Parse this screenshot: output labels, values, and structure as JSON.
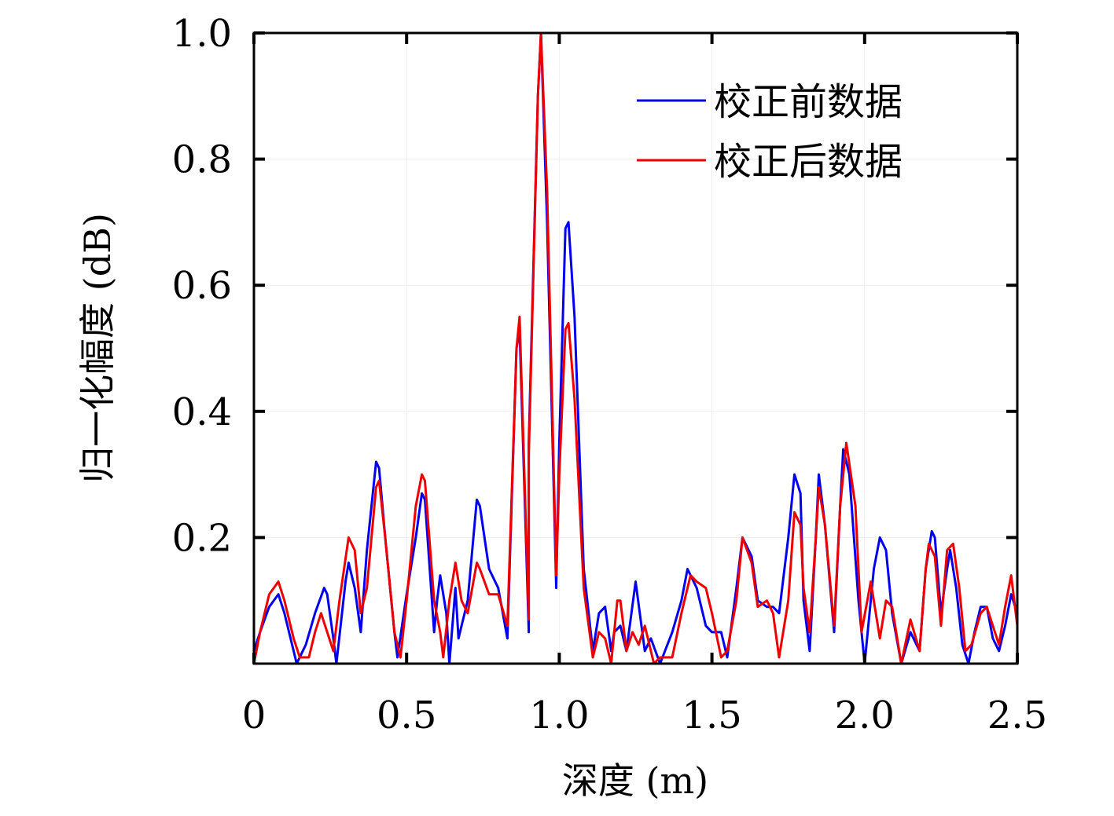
{
  "chart_data": {
    "type": "line",
    "xlabel": "深度 (m)",
    "ylabel": "归一化幅度 (dB)",
    "xlim": [
      0,
      2.5
    ],
    "ylim": [
      0,
      1.0
    ],
    "xticks": [
      0,
      0.5,
      1.0,
      1.5,
      2.0,
      2.5
    ],
    "xtick_labels": [
      "0",
      "0.5",
      "1.0",
      "1.5",
      "2.0",
      "2.5"
    ],
    "yticks": [
      0.2,
      0.4,
      0.6,
      0.8,
      1.0
    ],
    "ytick_labels": [
      "0.2",
      "0.4",
      "0.6",
      "0.8",
      "1.0"
    ],
    "grid": true,
    "legend_position": "top-right",
    "series": [
      {
        "name": "校正前数据",
        "color": "#0000ee",
        "x": [
          0,
          0.02,
          0.05,
          0.08,
          0.1,
          0.13,
          0.14,
          0.17,
          0.2,
          0.23,
          0.24,
          0.26,
          0.27,
          0.3,
          0.31,
          0.33,
          0.35,
          0.37,
          0.4,
          0.41,
          0.43,
          0.46,
          0.47,
          0.5,
          0.53,
          0.55,
          0.56,
          0.59,
          0.6,
          0.61,
          0.63,
          0.64,
          0.66,
          0.67,
          0.7,
          0.73,
          0.74,
          0.77,
          0.8,
          0.83,
          0.86,
          0.87,
          0.9,
          0.9,
          0.93,
          0.94,
          0.96,
          0.99,
          1.0,
          1.02,
          1.03,
          1.05,
          1.08,
          1.11,
          1.13,
          1.15,
          1.17,
          1.18,
          1.2,
          1.22,
          1.25,
          1.28,
          1.3,
          1.33,
          1.37,
          1.4,
          1.42,
          1.45,
          1.48,
          1.5,
          1.53,
          1.55,
          1.58,
          1.6,
          1.63,
          1.65,
          1.68,
          1.7,
          1.72,
          1.75,
          1.77,
          1.79,
          1.8,
          1.82,
          1.84,
          1.85,
          1.87,
          1.9,
          1.92,
          1.93,
          1.95,
          1.98,
          2.0,
          2.03,
          2.05,
          2.07,
          2.09,
          2.12,
          2.15,
          2.18,
          2.2,
          2.22,
          2.23,
          2.25,
          2.27,
          2.28,
          2.3,
          2.32,
          2.34,
          2.36,
          2.38,
          2.4,
          2.42,
          2.44,
          2.46,
          2.48,
          2.5
        ],
        "y": [
          0.02,
          0.05,
          0.09,
          0.11,
          0.08,
          0.02,
          0.0,
          0.03,
          0.08,
          0.12,
          0.11,
          0.04,
          0.0,
          0.13,
          0.16,
          0.12,
          0.05,
          0.18,
          0.32,
          0.31,
          0.2,
          0.05,
          0.01,
          0.11,
          0.2,
          0.27,
          0.26,
          0.05,
          0.1,
          0.14,
          0.08,
          0.0,
          0.12,
          0.04,
          0.1,
          0.26,
          0.25,
          0.15,
          0.12,
          0.04,
          0.5,
          0.53,
          0.05,
          0.35,
          0.9,
          1.0,
          0.7,
          0.12,
          0.35,
          0.69,
          0.7,
          0.55,
          0.15,
          0.02,
          0.08,
          0.09,
          0.02,
          0.05,
          0.06,
          0.02,
          0.13,
          0.02,
          0.04,
          0.0,
          0.05,
          0.1,
          0.15,
          0.12,
          0.06,
          0.05,
          0.05,
          0.01,
          0.12,
          0.2,
          0.17,
          0.1,
          0.09,
          0.09,
          0.08,
          0.2,
          0.3,
          0.27,
          0.1,
          0.02,
          0.2,
          0.3,
          0.22,
          0.05,
          0.25,
          0.34,
          0.3,
          0.1,
          0.0,
          0.15,
          0.2,
          0.18,
          0.08,
          0.0,
          0.05,
          0.02,
          0.15,
          0.21,
          0.2,
          0.08,
          0.15,
          0.18,
          0.12,
          0.03,
          0.0,
          0.05,
          0.09,
          0.09,
          0.04,
          0.02,
          0.06,
          0.11,
          0.08
        ]
      },
      {
        "name": "校正后数据",
        "color": "#ee0000",
        "x": [
          0,
          0.02,
          0.05,
          0.08,
          0.1,
          0.13,
          0.15,
          0.18,
          0.2,
          0.22,
          0.24,
          0.26,
          0.28,
          0.31,
          0.33,
          0.35,
          0.37,
          0.4,
          0.41,
          0.43,
          0.46,
          0.48,
          0.5,
          0.53,
          0.55,
          0.56,
          0.59,
          0.61,
          0.62,
          0.64,
          0.66,
          0.68,
          0.7,
          0.73,
          0.74,
          0.77,
          0.8,
          0.83,
          0.86,
          0.87,
          0.9,
          0.9,
          0.93,
          0.94,
          0.96,
          0.99,
          1.0,
          1.02,
          1.03,
          1.05,
          1.08,
          1.11,
          1.13,
          1.15,
          1.17,
          1.19,
          1.2,
          1.22,
          1.24,
          1.26,
          1.28,
          1.31,
          1.33,
          1.37,
          1.4,
          1.43,
          1.45,
          1.48,
          1.5,
          1.53,
          1.55,
          1.58,
          1.6,
          1.63,
          1.65,
          1.68,
          1.7,
          1.72,
          1.75,
          1.77,
          1.79,
          1.8,
          1.82,
          1.84,
          1.85,
          1.87,
          1.9,
          1.92,
          1.94,
          1.97,
          1.99,
          2.02,
          2.05,
          2.07,
          2.09,
          2.12,
          2.15,
          2.18,
          2.2,
          2.21,
          2.23,
          2.25,
          2.27,
          2.29,
          2.31,
          2.33,
          2.35,
          2.38,
          2.4,
          2.42,
          2.44,
          2.46,
          2.48,
          2.5
        ],
        "y": [
          0.0,
          0.05,
          0.11,
          0.13,
          0.1,
          0.04,
          0.01,
          0.01,
          0.05,
          0.08,
          0.05,
          0.02,
          0.1,
          0.2,
          0.18,
          0.08,
          0.12,
          0.28,
          0.29,
          0.2,
          0.05,
          0.01,
          0.1,
          0.25,
          0.3,
          0.29,
          0.1,
          0.05,
          0.01,
          0.1,
          0.16,
          0.1,
          0.08,
          0.16,
          0.15,
          0.11,
          0.11,
          0.06,
          0.5,
          0.55,
          0.07,
          0.33,
          0.9,
          1.0,
          0.75,
          0.14,
          0.3,
          0.53,
          0.54,
          0.42,
          0.12,
          0.01,
          0.05,
          0.04,
          0.0,
          0.1,
          0.1,
          0.02,
          0.05,
          0.03,
          0.06,
          0.0,
          0.01,
          0.01,
          0.08,
          0.14,
          0.13,
          0.12,
          0.08,
          0.01,
          0.02,
          0.1,
          0.2,
          0.16,
          0.09,
          0.1,
          0.08,
          0.01,
          0.1,
          0.24,
          0.22,
          0.12,
          0.05,
          0.2,
          0.28,
          0.22,
          0.06,
          0.25,
          0.35,
          0.25,
          0.05,
          0.13,
          0.04,
          0.1,
          0.09,
          0.0,
          0.07,
          0.02,
          0.15,
          0.19,
          0.17,
          0.06,
          0.18,
          0.19,
          0.12,
          0.02,
          0.03,
          0.08,
          0.09,
          0.06,
          0.03,
          0.09,
          0.14,
          0.06
        ]
      }
    ]
  }
}
